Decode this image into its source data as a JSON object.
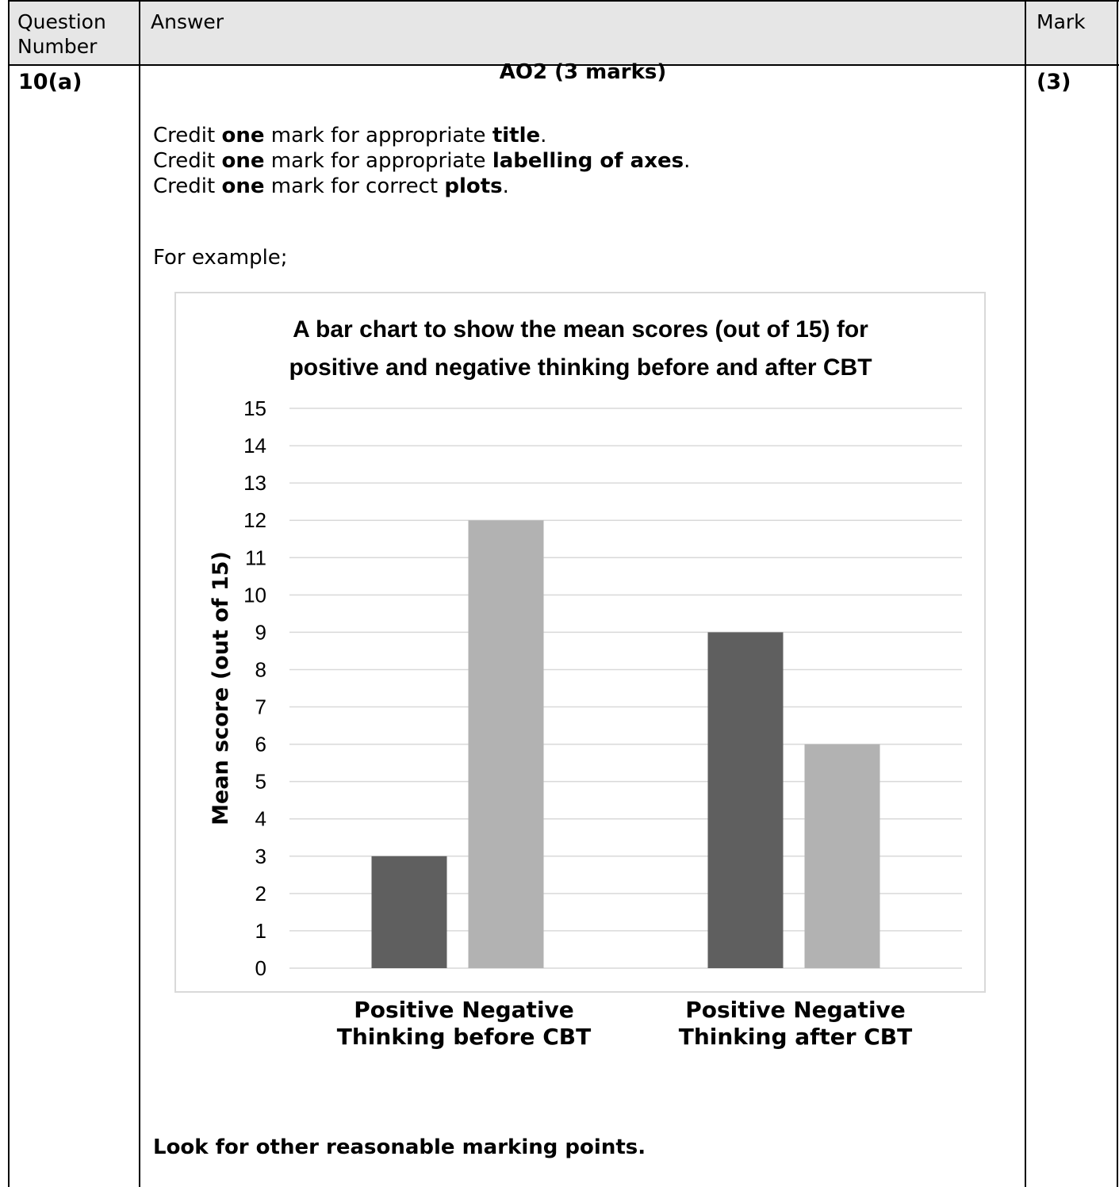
{
  "table": {
    "headers": {
      "question": "Question\nNumber",
      "answer": "Answer",
      "mark": "Mark"
    },
    "question_number": "10(a)",
    "mark_value": "(3)",
    "answer": {
      "heading": "AO2 (3 marks)",
      "credits": [
        {
          "pre": "Credit ",
          "b1": "one",
          "mid": " mark for appropriate ",
          "b2": "title",
          "post": "."
        },
        {
          "pre": "Credit ",
          "b1": "one",
          "mid": " mark for appropriate ",
          "b2": "labelling of axes",
          "post": "."
        },
        {
          "pre": "Credit ",
          "b1": "one",
          "mid": " mark for correct ",
          "b2": "plots",
          "post": "."
        }
      ],
      "example_label": "For example;",
      "footer_note": "Look for other reasonable marking points."
    }
  },
  "chart_data": {
    "type": "bar",
    "title": "A bar chart to show the mean scores (out of 15) for positive and negative thinking before and after CBT",
    "title_lines": [
      "A bar chart to show the mean scores (out of 15) for",
      "positive and negative thinking before and after CBT"
    ],
    "ylabel": "Mean score (out of 15)",
    "xlabel": "",
    "categories": [
      "Positive Negative Thinking before CBT",
      "Positive Negative Thinking after CBT"
    ],
    "category_label_lines": [
      [
        "Positive Negative",
        "Thinking before CBT"
      ],
      [
        "Positive Negative",
        "Thinking after CBT"
      ]
    ],
    "series": [
      {
        "values": [
          3,
          9
        ],
        "color": "#5f5f5f"
      },
      {
        "values": [
          12,
          6
        ],
        "color": "#b2b2b2"
      }
    ],
    "ylim": [
      0,
      15
    ],
    "yticks": [
      0,
      1,
      2,
      3,
      4,
      5,
      6,
      7,
      8,
      9,
      10,
      11,
      12,
      13,
      14,
      15
    ],
    "grid": true,
    "gridline_color": "#d9d9d9"
  }
}
